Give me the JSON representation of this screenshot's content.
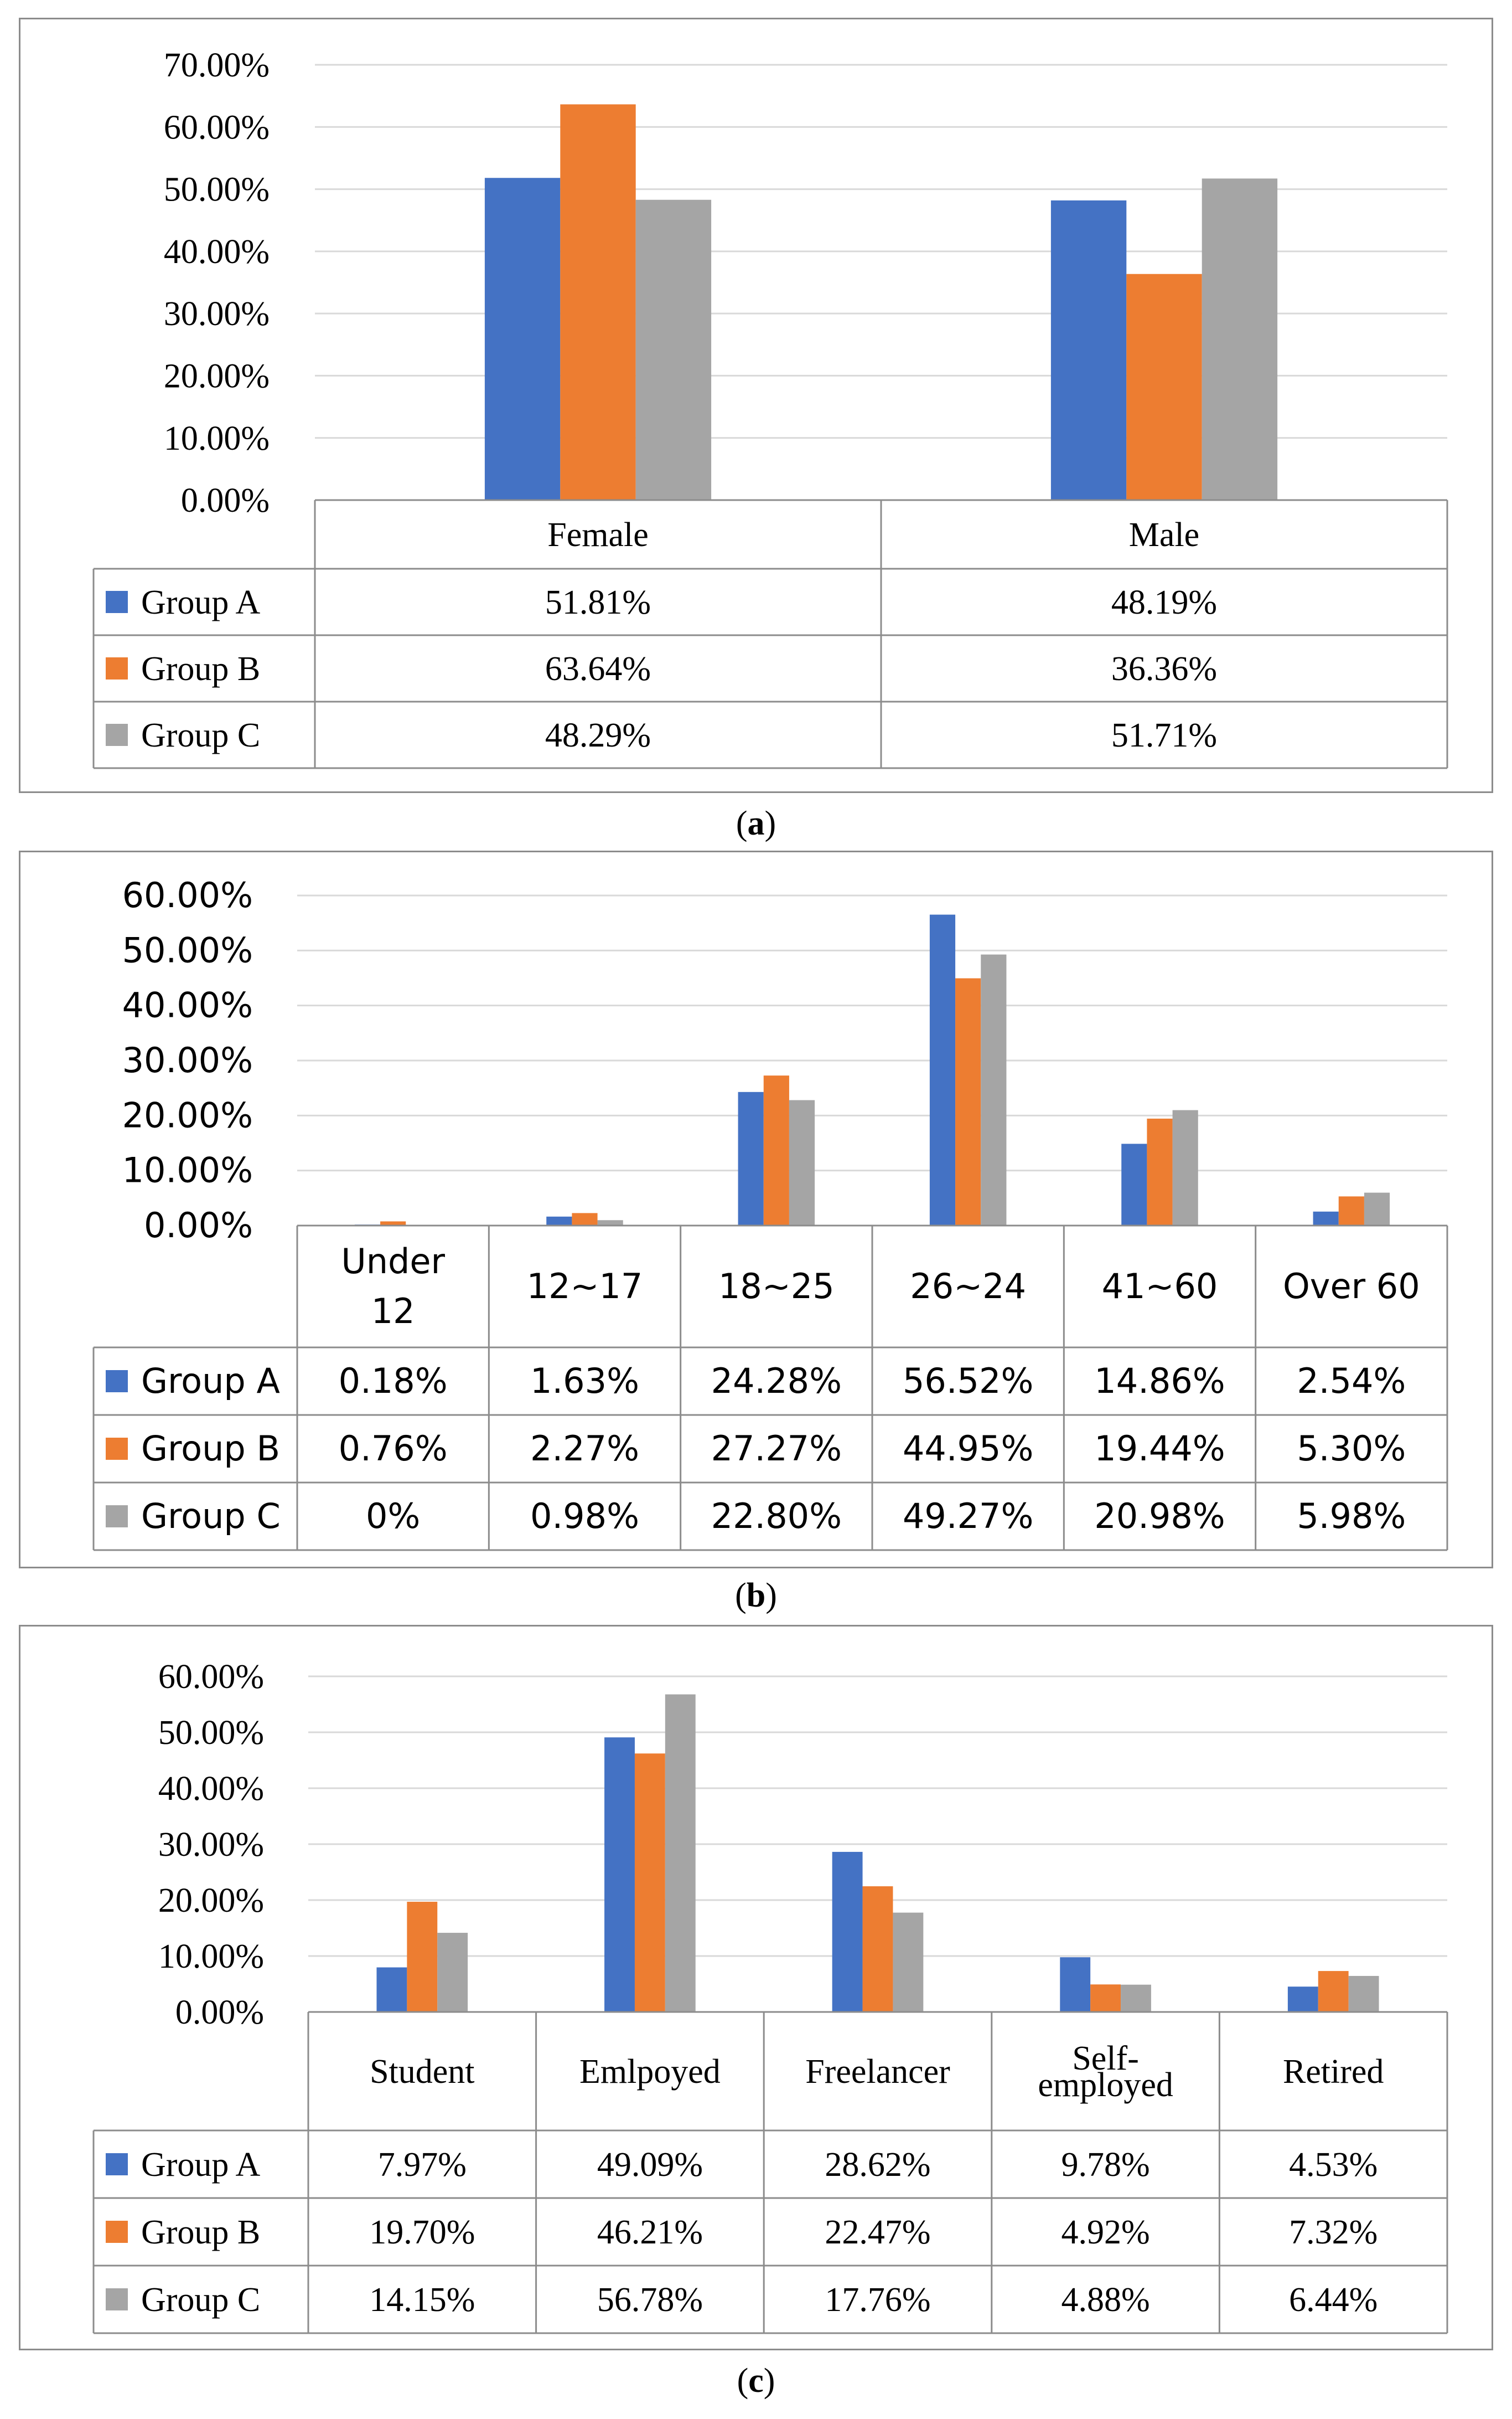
{
  "colors": {
    "group_a": "#4472C4",
    "group_b": "#ED7D31",
    "group_c": "#A5A5A5",
    "grid": "#d9d9d9",
    "border": "#8c8c8c"
  },
  "series_names": [
    "Group A",
    "Group B",
    "Group C"
  ],
  "chart_data": [
    {
      "id": "a",
      "type": "bar",
      "caption_letter": "a",
      "categories": [
        [
          "Female"
        ],
        [
          "Male"
        ]
      ],
      "series": [
        {
          "name": "Group A",
          "values": [
            51.81,
            48.19
          ],
          "labels": [
            "51.81%",
            "48.19%"
          ]
        },
        {
          "name": "Group B",
          "values": [
            63.64,
            36.36
          ],
          "labels": [
            "63.64%",
            "36.36%"
          ]
        },
        {
          "name": "Group C",
          "values": [
            48.29,
            51.71
          ],
          "labels": [
            "48.29%",
            "51.71%"
          ]
        }
      ],
      "ylim": [
        0,
        70
      ],
      "yticks": [
        "0.00%",
        "10.00%",
        "20.00%",
        "30.00%",
        "40.00%",
        "50.00%",
        "60.00%",
        "70.00%"
      ],
      "legend": "data-table"
    },
    {
      "id": "b",
      "type": "bar",
      "caption_letter": "b",
      "categories": [
        [
          "Under",
          "12"
        ],
        [
          "12~17"
        ],
        [
          "18~25"
        ],
        [
          "26~24"
        ],
        [
          "41~60"
        ],
        [
          "Over 60"
        ]
      ],
      "series": [
        {
          "name": "Group A",
          "values": [
            0.18,
            1.63,
            24.28,
            56.52,
            14.86,
            2.54
          ],
          "labels": [
            "0.18%",
            "1.63%",
            "24.28%",
            "56.52%",
            "14.86%",
            "2.54%"
          ]
        },
        {
          "name": "Group B",
          "values": [
            0.76,
            2.27,
            27.27,
            44.95,
            19.44,
            5.3
          ],
          "labels": [
            "0.76%",
            "2.27%",
            "27.27%",
            "44.95%",
            "19.44%",
            "5.30%"
          ]
        },
        {
          "name": "Group C",
          "values": [
            0,
            0.98,
            22.8,
            49.27,
            20.98,
            5.98
          ],
          "labels": [
            "0%",
            "0.98%",
            "22.80%",
            "49.27%",
            "20.98%",
            "5.98%"
          ]
        }
      ],
      "ylim": [
        0,
        60
      ],
      "yticks": [
        "0.00%",
        "10.00%",
        "20.00%",
        "30.00%",
        "40.00%",
        "50.00%",
        "60.00%"
      ],
      "legend": "data-table"
    },
    {
      "id": "c",
      "type": "bar",
      "caption_letter": "c",
      "categories": [
        [
          "Student"
        ],
        [
          "Emlpoyed"
        ],
        [
          "Freelancer"
        ],
        [
          "Self-",
          "employed"
        ],
        [
          "Retired"
        ]
      ],
      "series": [
        {
          "name": "Group A",
          "values": [
            7.97,
            49.09,
            28.62,
            9.78,
            4.53
          ],
          "labels": [
            "7.97%",
            "49.09%",
            "28.62%",
            "9.78%",
            "4.53%"
          ]
        },
        {
          "name": "Group B",
          "values": [
            19.7,
            46.21,
            22.47,
            4.92,
            7.32
          ],
          "labels": [
            "19.70%",
            "46.21%",
            "22.47%",
            "4.92%",
            "7.32%"
          ]
        },
        {
          "name": "Group C",
          "values": [
            14.15,
            56.78,
            17.76,
            4.88,
            6.44
          ],
          "labels": [
            "14.15%",
            "56.78%",
            "17.76%",
            "4.88%",
            "6.44%"
          ]
        }
      ],
      "ylim": [
        0,
        60
      ],
      "yticks": [
        "0.00%",
        "10.00%",
        "20.00%",
        "30.00%",
        "40.00%",
        "50.00%",
        "60.00%"
      ],
      "legend": "data-table"
    }
  ]
}
